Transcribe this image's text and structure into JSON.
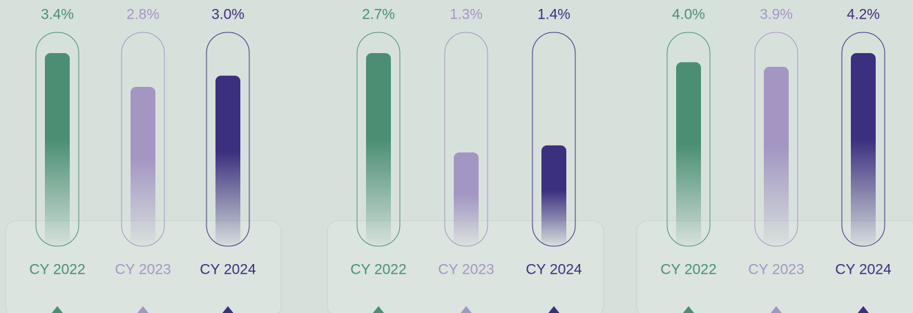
{
  "chart_data": [
    {
      "type": "bar",
      "categories": [
        "CY 2022",
        "CY 2023",
        "CY 2024"
      ],
      "values": [
        3.4,
        2.8,
        3.0
      ],
      "value_labels": [
        "3.4%",
        "2.8%",
        "3.0%"
      ],
      "colors": [
        "#4a8f74",
        "#a396c3",
        "#3b2f7f"
      ]
    },
    {
      "type": "bar",
      "categories": [
        "CY 2022",
        "CY 2023",
        "CY 2024"
      ],
      "values": [
        2.7,
        1.3,
        1.4
      ],
      "value_labels": [
        "2.7%",
        "1.3%",
        "1.4%"
      ],
      "colors": [
        "#4a8f74",
        "#a396c3",
        "#3b2f7f"
      ]
    },
    {
      "type": "bar",
      "categories": [
        "CY 2022",
        "CY 2023",
        "CY 2024"
      ],
      "values": [
        4.0,
        3.9,
        4.2
      ],
      "value_labels": [
        "4.0%",
        "3.9%",
        "4.2%"
      ],
      "colors": [
        "#4a8f74",
        "#a396c3",
        "#3b2f7f"
      ]
    }
  ]
}
